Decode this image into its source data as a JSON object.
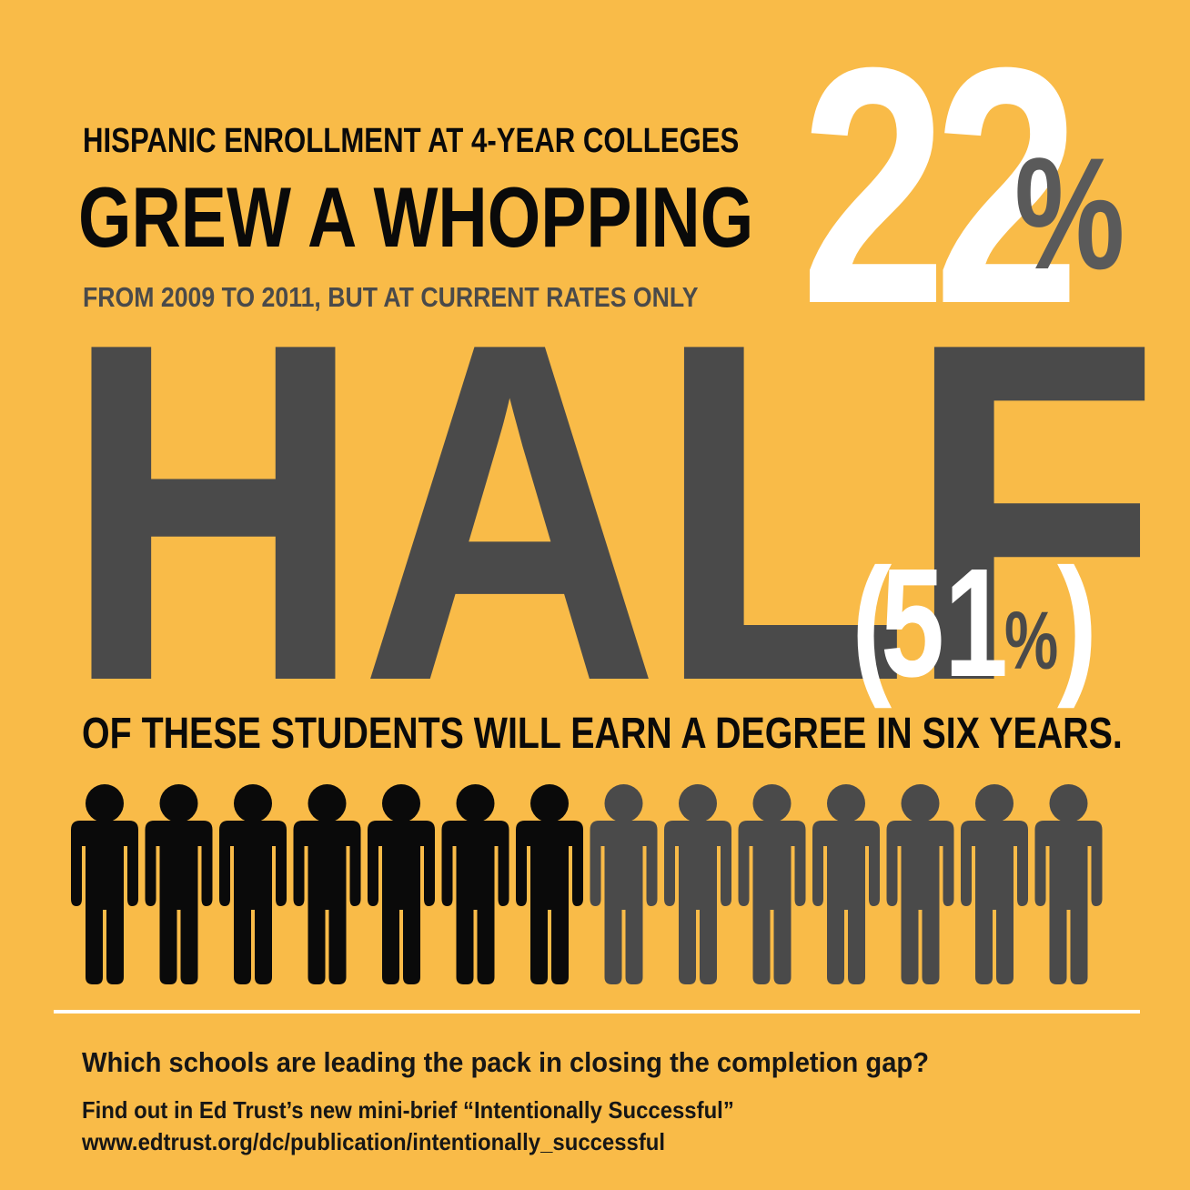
{
  "colors": {
    "background": "#f9bb48",
    "black": "#0a0a0a",
    "dark_gray": "#4a4a4a",
    "white": "#ffffff"
  },
  "headline": {
    "line1": "HISPANIC ENROLLMENT AT 4-YEAR COLLEGES",
    "line2": "GREW A WHOPPING",
    "stat_number": "22",
    "stat_percent": "%",
    "line3": "FROM 2009 TO 2011, BUT AT CURRENT RATES ONLY"
  },
  "completion": {
    "big_word": "HALF",
    "paren_open": "(",
    "stat_number": "51",
    "stat_percent": "%",
    "paren_close": ")",
    "line4": "OF THESE STUDENTS WILL EARN A DEGREE IN SIX YEARS."
  },
  "people": {
    "total": 14,
    "highlighted": 7,
    "highlight_color": "#0a0a0a",
    "rest_color": "#4a4a4a",
    "icon": "person-icon"
  },
  "footer": {
    "question": "Which schools are leading the pack in closing the completion gap?",
    "find_out": "Find out in Ed Trust’s new mini-brief “Intentionally Successful”",
    "url": "www.edtrust.org/dc/publication/intentionally_successful"
  }
}
